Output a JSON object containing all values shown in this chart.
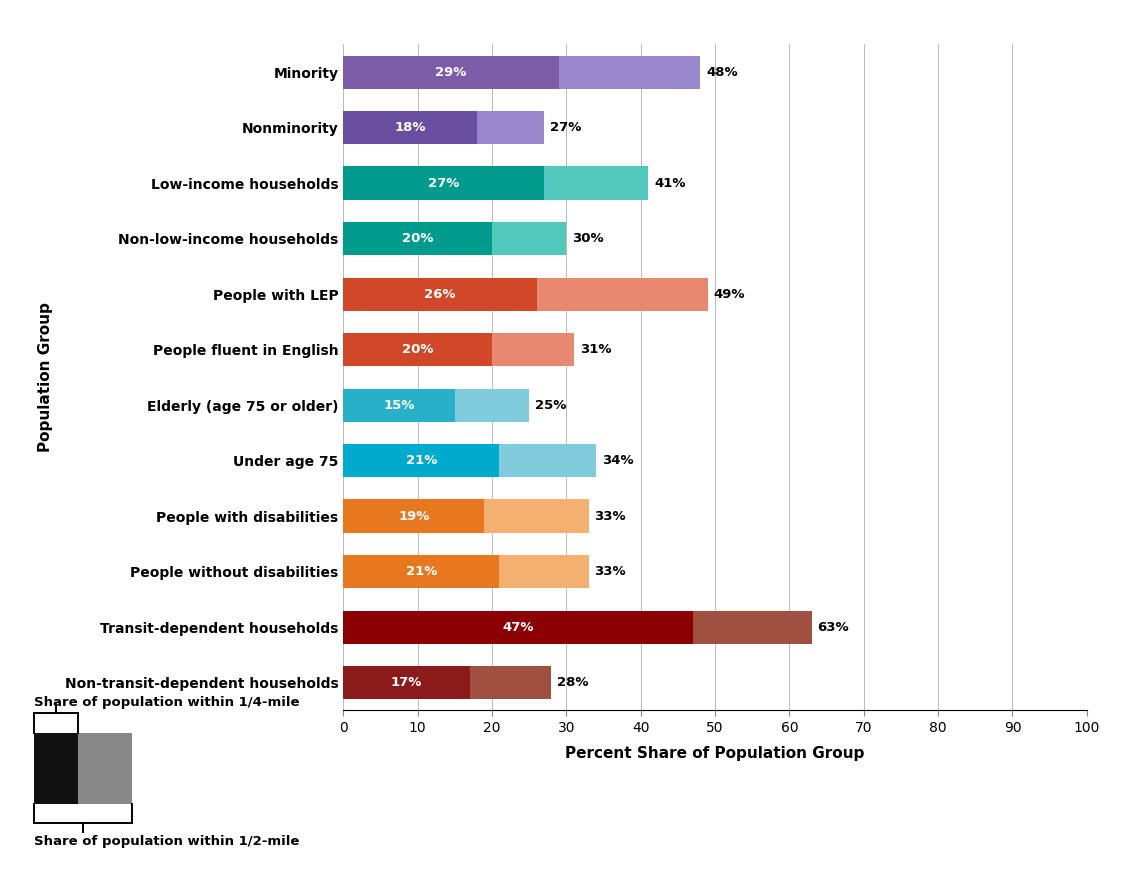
{
  "categories": [
    "Non-transit-dependent households",
    "Transit-dependent households",
    "People without disabilities",
    "People with disabilities",
    "Under age 75",
    "Elderly (age 75 or older)",
    "People fluent in English",
    "People with LEP",
    "Non-low-income households",
    "Low-income households",
    "Nonminority",
    "Minority"
  ],
  "quarter_mile": [
    17,
    47,
    21,
    19,
    21,
    15,
    20,
    26,
    20,
    27,
    18,
    29
  ],
  "half_mile": [
    28,
    63,
    33,
    33,
    34,
    25,
    31,
    49,
    30,
    41,
    27,
    48
  ],
  "colors_dark": [
    "#8B1A1A",
    "#8B0000",
    "#E87820",
    "#E87820",
    "#00AACC",
    "#28B0C8",
    "#D04828",
    "#D04828",
    "#009B8D",
    "#009B8D",
    "#6A4EA0",
    "#7B5EA7"
  ],
  "colors_light": [
    "#A05040",
    "#A05040",
    "#F4B070",
    "#F4B070",
    "#80CCDD",
    "#80CCDD",
    "#E88870",
    "#E88870",
    "#50C8BC",
    "#50C8BC",
    "#9988CC",
    "#9988CC"
  ],
  "xlabel": "Percent Share of Population Group",
  "ylabel": "Population Group",
  "xlim": [
    0,
    100
  ],
  "xticks": [
    0,
    10,
    20,
    30,
    40,
    50,
    60,
    70,
    80,
    90,
    100
  ],
  "legend_label_quarter": "Share of population within 1/4-mile",
  "legend_label_half": "Share of population within 1/2-mile",
  "background_color": "#ffffff"
}
